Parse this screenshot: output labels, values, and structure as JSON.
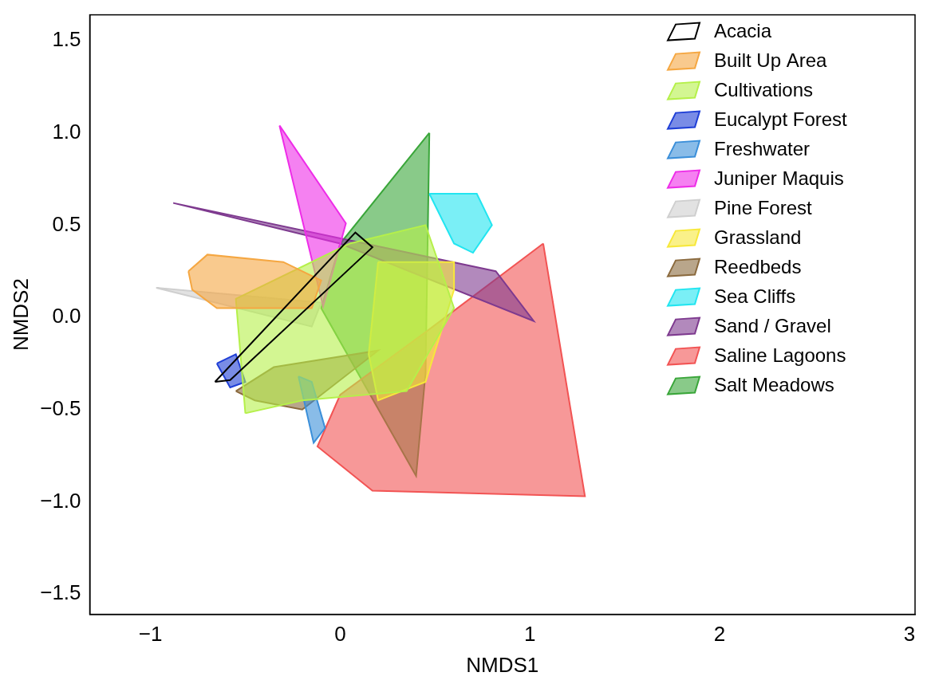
{
  "chart_data": {
    "type": "scatter",
    "x_label": "NMDS1",
    "y_label": "NMDS2",
    "xlim": [
      -1.32,
      3.03
    ],
    "ylim": [
      -1.61,
      1.64
    ],
    "xticks": [
      {
        "value": -1,
        "label": "−1"
      },
      0,
      1,
      2,
      3
    ],
    "yticks": [
      {
        "value": -1.5,
        "label": "−1.5"
      },
      {
        "value": -1,
        "label": "−1.0"
      },
      {
        "value": -0.5,
        "label": "−0.5"
      },
      {
        "value": 0,
        "label": "0.0"
      },
      0.5,
      {
        "value": 1,
        "label": "1.0"
      },
      1.5
    ],
    "grid": false,
    "legend": "upper right",
    "series": [
      {
        "name": "Acacia",
        "type": "line",
        "color": "#000000",
        "values": [
          [
            -0.66,
            -0.35
          ],
          [
            -0.58,
            -0.34
          ],
          [
            0.17,
            0.38
          ],
          [
            0.08,
            0.46
          ]
        ]
      },
      {
        "name": "Built Up Area",
        "type": "area",
        "color": "#f5a742",
        "values": [
          [
            -0.8,
            0.25
          ],
          [
            -0.7,
            0.34
          ],
          [
            -0.3,
            0.3
          ],
          [
            -0.1,
            0.2
          ],
          [
            -0.15,
            0.05
          ],
          [
            -0.65,
            0.05
          ],
          [
            -0.78,
            0.15
          ]
        ]
      },
      {
        "name": "Cultivations",
        "type": "area",
        "color": "#b5f04a",
        "values": [
          [
            -0.5,
            -0.52
          ],
          [
            -0.2,
            -0.45
          ],
          [
            0.35,
            -0.4
          ],
          [
            0.6,
            0.05
          ],
          [
            0.45,
            0.5
          ],
          [
            0.05,
            0.4
          ],
          [
            -0.55,
            0.1
          ]
        ]
      },
      {
        "name": "Eucalypt Forest",
        "type": "area",
        "color": "#1f3fd6",
        "values": [
          [
            -0.65,
            -0.25
          ],
          [
            -0.55,
            -0.2
          ],
          [
            -0.5,
            -0.35
          ],
          [
            -0.58,
            -0.38
          ]
        ]
      },
      {
        "name": "Freshwater",
        "type": "area",
        "color": "#3b8fd9",
        "values": [
          [
            -0.22,
            -0.32
          ],
          [
            -0.15,
            -0.35
          ],
          [
            -0.08,
            -0.6
          ],
          [
            -0.14,
            -0.68
          ]
        ]
      },
      {
        "name": "Juniper Maquis",
        "type": "area",
        "color": "#ee2de8",
        "values": [
          [
            -0.32,
            1.04
          ],
          [
            0.03,
            0.51
          ],
          [
            -0.09,
            0.06
          ]
        ]
      },
      {
        "name": "Pine Forest",
        "type": "area",
        "color": "#cfcfcf",
        "values": [
          [
            -0.97,
            0.16
          ],
          [
            -0.1,
            0.08
          ],
          [
            -0.15,
            -0.05
          ]
        ]
      },
      {
        "name": "Grassland",
        "type": "area",
        "color": "#f7e83a",
        "values": [
          [
            0.2,
            0.3
          ],
          [
            0.6,
            0.3
          ],
          [
            0.6,
            0.15
          ],
          [
            0.45,
            -0.35
          ],
          [
            0.2,
            -0.45
          ],
          [
            0.15,
            -0.2
          ]
        ]
      },
      {
        "name": "Reedbeds",
        "type": "area",
        "color": "#8b6a3e",
        "values": [
          [
            -0.55,
            -0.4
          ],
          [
            -0.35,
            -0.27
          ],
          [
            0.2,
            -0.18
          ],
          [
            -0.2,
            -0.5
          ],
          [
            -0.45,
            -0.45
          ]
        ]
      },
      {
        "name": "Sea Cliffs",
        "type": "area",
        "color": "#22e5f0",
        "values": [
          [
            0.47,
            0.67
          ],
          [
            0.72,
            0.67
          ],
          [
            0.8,
            0.5
          ],
          [
            0.7,
            0.35
          ],
          [
            0.6,
            0.4
          ]
        ]
      },
      {
        "name": "Sand / Gravel",
        "type": "area",
        "color": "#7e3a8f",
        "values": [
          [
            -0.88,
            0.62
          ],
          [
            0.82,
            0.25
          ],
          [
            1.02,
            -0.02
          ],
          [
            0.0,
            0.4
          ]
        ]
      },
      {
        "name": "Saline Lagoons",
        "type": "area",
        "color": "#f25454",
        "values": [
          [
            1.07,
            0.4
          ],
          [
            1.29,
            -0.97
          ],
          [
            0.17,
            -0.94
          ],
          [
            -0.12,
            -0.7
          ],
          [
            0.0,
            -0.42
          ],
          [
            0.45,
            -0.08
          ]
        ]
      },
      {
        "name": "Salt Meadows",
        "type": "area",
        "color": "#3aa63a",
        "values": [
          [
            0.47,
            1.0
          ],
          [
            0.45,
            -0.3
          ],
          [
            0.4,
            -0.86
          ],
          [
            -0.1,
            0.05
          ],
          [
            0.0,
            0.4
          ]
        ]
      }
    ]
  }
}
